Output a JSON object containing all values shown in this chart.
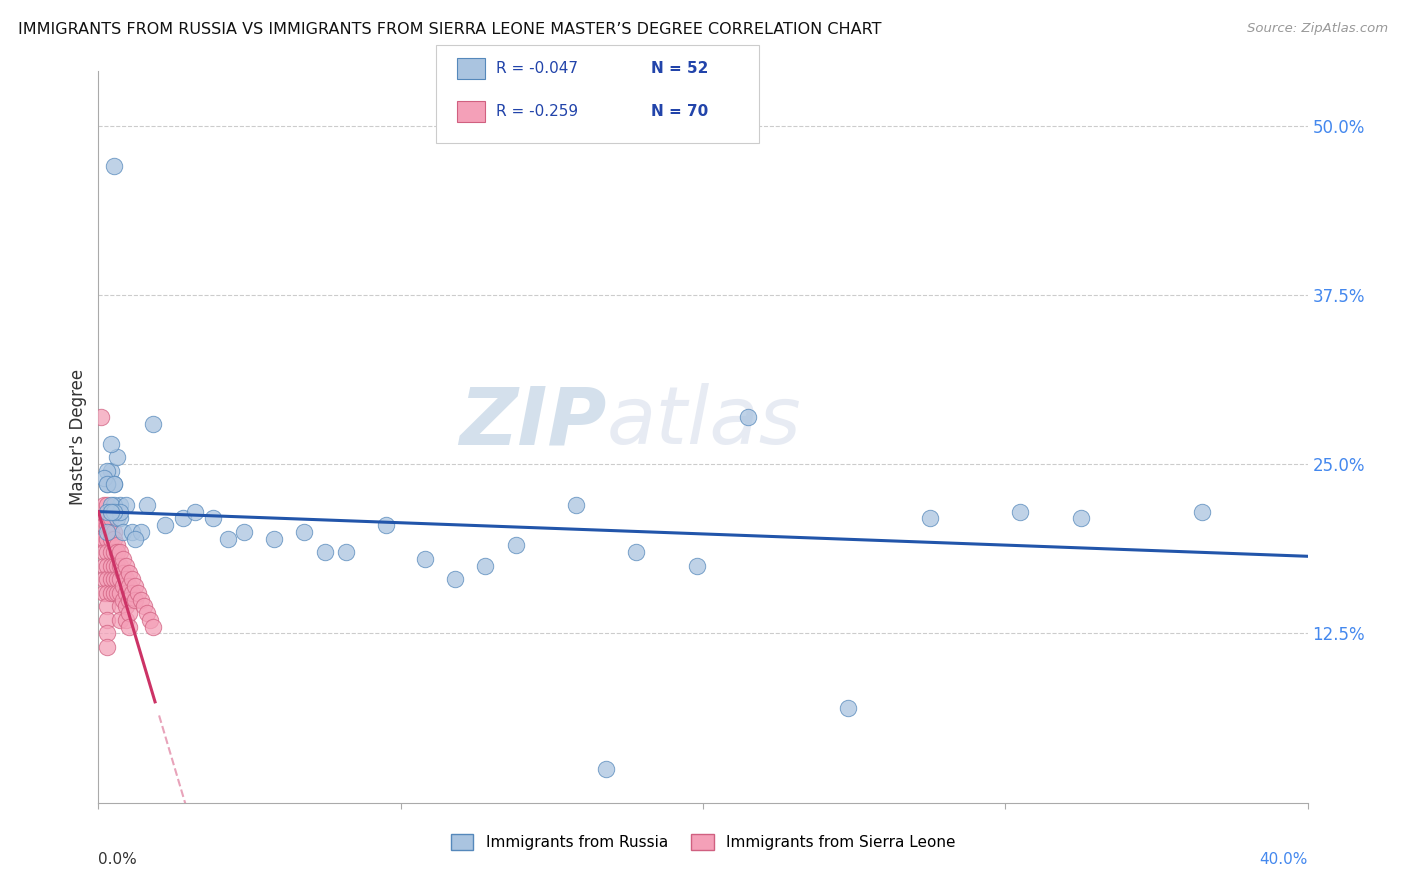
{
  "title": "IMMIGRANTS FROM RUSSIA VS IMMIGRANTS FROM SIERRA LEONE MASTER’S DEGREE CORRELATION CHART",
  "source": "Source: ZipAtlas.com",
  "ylabel": "Master's Degree",
  "yticks": [
    "50.0%",
    "37.5%",
    "25.0%",
    "12.5%"
  ],
  "ytick_vals": [
    0.5,
    0.375,
    0.25,
    0.125
  ],
  "xlim": [
    0.0,
    0.4
  ],
  "ylim": [
    0.0,
    0.54
  ],
  "russia_color": "#aac4e0",
  "russia_edge": "#5588bb",
  "sierra_color": "#f4a0b8",
  "sierra_edge": "#d06080",
  "russia_line_color": "#2255aa",
  "sierra_line_color": "#cc3366",
  "russia_R": -0.047,
  "russia_N": 52,
  "sierra_R": -0.259,
  "sierra_N": 70,
  "watermark_zip": "ZIP",
  "watermark_atlas": "atlas",
  "russia_x": [
    0.005,
    0.018,
    0.004,
    0.005,
    0.003,
    0.006,
    0.003,
    0.004,
    0.007,
    0.002,
    0.003,
    0.005,
    0.005,
    0.004,
    0.006,
    0.003,
    0.007,
    0.009,
    0.007,
    0.005,
    0.004,
    0.003,
    0.008,
    0.011,
    0.014,
    0.016,
    0.012,
    0.022,
    0.028,
    0.032,
    0.038,
    0.043,
    0.048,
    0.058,
    0.068,
    0.075,
    0.082,
    0.095,
    0.108,
    0.118,
    0.128,
    0.138,
    0.158,
    0.178,
    0.198,
    0.215,
    0.275,
    0.305,
    0.325,
    0.365,
    0.248,
    0.168
  ],
  "russia_y": [
    0.47,
    0.28,
    0.245,
    0.235,
    0.235,
    0.255,
    0.245,
    0.265,
    0.22,
    0.24,
    0.235,
    0.235,
    0.22,
    0.22,
    0.21,
    0.215,
    0.21,
    0.22,
    0.215,
    0.215,
    0.215,
    0.2,
    0.2,
    0.2,
    0.2,
    0.22,
    0.195,
    0.205,
    0.21,
    0.215,
    0.21,
    0.195,
    0.2,
    0.195,
    0.2,
    0.185,
    0.185,
    0.205,
    0.18,
    0.165,
    0.175,
    0.19,
    0.22,
    0.185,
    0.175,
    0.285,
    0.21,
    0.215,
    0.21,
    0.215,
    0.07,
    0.025
  ],
  "sierra_x": [
    0.001,
    0.001,
    0.001,
    0.002,
    0.002,
    0.002,
    0.002,
    0.002,
    0.002,
    0.002,
    0.003,
    0.003,
    0.003,
    0.003,
    0.003,
    0.003,
    0.003,
    0.003,
    0.003,
    0.003,
    0.003,
    0.003,
    0.004,
    0.004,
    0.004,
    0.004,
    0.004,
    0.004,
    0.004,
    0.005,
    0.005,
    0.005,
    0.005,
    0.005,
    0.005,
    0.006,
    0.006,
    0.006,
    0.006,
    0.006,
    0.007,
    0.007,
    0.007,
    0.007,
    0.007,
    0.007,
    0.008,
    0.008,
    0.008,
    0.008,
    0.009,
    0.009,
    0.009,
    0.009,
    0.009,
    0.01,
    0.01,
    0.01,
    0.01,
    0.01,
    0.011,
    0.011,
    0.012,
    0.012,
    0.013,
    0.014,
    0.015,
    0.016,
    0.017,
    0.018
  ],
  "sierra_y": [
    0.285,
    0.21,
    0.195,
    0.22,
    0.205,
    0.195,
    0.185,
    0.175,
    0.165,
    0.155,
    0.22,
    0.21,
    0.205,
    0.195,
    0.185,
    0.175,
    0.165,
    0.155,
    0.145,
    0.135,
    0.125,
    0.115,
    0.21,
    0.2,
    0.195,
    0.185,
    0.175,
    0.165,
    0.155,
    0.2,
    0.195,
    0.185,
    0.175,
    0.165,
    0.155,
    0.19,
    0.185,
    0.175,
    0.165,
    0.155,
    0.185,
    0.175,
    0.165,
    0.155,
    0.145,
    0.135,
    0.18,
    0.17,
    0.16,
    0.15,
    0.175,
    0.165,
    0.155,
    0.145,
    0.135,
    0.17,
    0.16,
    0.15,
    0.14,
    0.13,
    0.165,
    0.155,
    0.16,
    0.15,
    0.155,
    0.15,
    0.145,
    0.14,
    0.135,
    0.13
  ]
}
